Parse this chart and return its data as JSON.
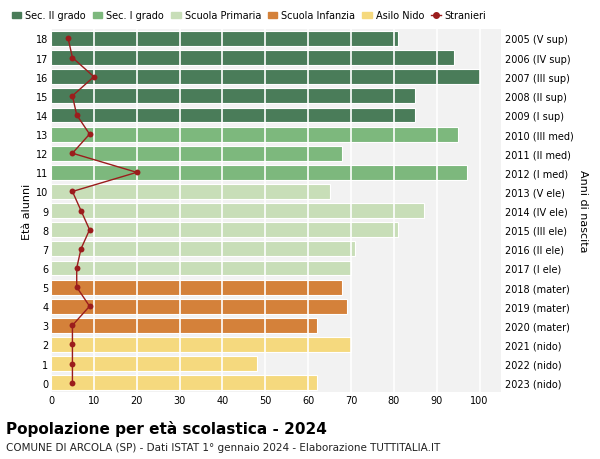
{
  "ages": [
    18,
    17,
    16,
    15,
    14,
    13,
    12,
    11,
    10,
    9,
    8,
    7,
    6,
    5,
    4,
    3,
    2,
    1,
    0
  ],
  "years": [
    "2005 (V sup)",
    "2006 (IV sup)",
    "2007 (III sup)",
    "2008 (II sup)",
    "2009 (I sup)",
    "2010 (III med)",
    "2011 (II med)",
    "2012 (I med)",
    "2013 (V ele)",
    "2014 (IV ele)",
    "2015 (III ele)",
    "2016 (II ele)",
    "2017 (I ele)",
    "2018 (mater)",
    "2019 (mater)",
    "2020 (mater)",
    "2021 (nido)",
    "2022 (nido)",
    "2023 (nido)"
  ],
  "bar_values": [
    81,
    94,
    100,
    85,
    85,
    95,
    68,
    97,
    65,
    87,
    81,
    71,
    70,
    68,
    69,
    62,
    70,
    48,
    62
  ],
  "bar_colors": [
    "#4a7c59",
    "#4a7c59",
    "#4a7c59",
    "#4a7c59",
    "#4a7c59",
    "#7db87d",
    "#7db87d",
    "#7db87d",
    "#c8deb8",
    "#c8deb8",
    "#c8deb8",
    "#c8deb8",
    "#c8deb8",
    "#d4813a",
    "#d4813a",
    "#d4813a",
    "#f5d97e",
    "#f5d97e",
    "#f5d97e"
  ],
  "stranieri_values": [
    4,
    5,
    10,
    5,
    6,
    9,
    5,
    20,
    5,
    7,
    9,
    7,
    6,
    6,
    9,
    5,
    5,
    5,
    5
  ],
  "stranieri_color": "#9b1c1c",
  "legend_labels": [
    "Sec. II grado",
    "Sec. I grado",
    "Scuola Primaria",
    "Scuola Infanzia",
    "Asilo Nido",
    "Stranieri"
  ],
  "legend_colors": [
    "#4a7c59",
    "#7db87d",
    "#c8deb8",
    "#d4813a",
    "#f5d97e",
    "#9b1c1c"
  ],
  "title": "Popolazione per età scolastica - 2024",
  "subtitle": "COMUNE DI ARCOLA (SP) - Dati ISTAT 1° gennaio 2024 - Elaborazione TUTTITALIA.IT",
  "ylabel": "Età alunni",
  "ylabel_right": "Anni di nascita",
  "xlim": [
    0,
    105
  ],
  "bg_color": "#ffffff",
  "plot_bg_color": "#f2f2f2",
  "grid_color": "#ffffff",
  "bar_height": 0.78,
  "title_fontsize": 11,
  "subtitle_fontsize": 7.5,
  "tick_fontsize": 7,
  "label_fontsize": 8,
  "legend_fontsize": 7
}
